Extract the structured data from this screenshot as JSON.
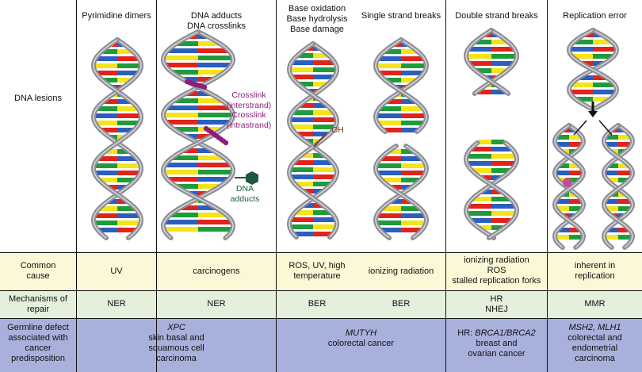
{
  "columns": [
    {
      "title": "Pyrimidine dimers"
    },
    {
      "title_line1": "DNA adducts",
      "title_line2": "DNA crosslinks"
    },
    {
      "title_line1": "Base oxidation",
      "title_line2": "Base hydrolysis",
      "title_line3": "Base damage"
    },
    {
      "title": "Single strand breaks"
    },
    {
      "title": "Double strand breaks"
    },
    {
      "title": "Replication error"
    }
  ],
  "rows": {
    "lesions": "DNA lesions",
    "cause_line1": "Common",
    "cause_line2": "cause",
    "mech_line1": "Mechanisms of",
    "mech_line2": "repair",
    "germ_line1": "Germline defect",
    "germ_line2": "associated with",
    "germ_line3": "cancer",
    "germ_line4": "predisposition"
  },
  "annotations": {
    "crosslink_inter_1": "Crosslink",
    "crosslink_inter_2": "(interstrand)",
    "crosslink_intra_1": "Crosslink",
    "crosslink_intra_2": "(intrastrand)",
    "adducts_1": "DNA",
    "adducts_2": "adducts",
    "oh": "OH"
  },
  "causes": {
    "c1": "UV",
    "c2": "carcinogens",
    "c3_line1": "ROS, UV, high",
    "c3_line2": "temperature",
    "c4": "ionizing radiation",
    "c5_line1": "ionizing radiation",
    "c5_line2": "ROS",
    "c5_line3": "stalled replication forks",
    "c6_line1": "inherent in",
    "c6_line2": "replication"
  },
  "mechanisms": {
    "m1": "NER",
    "m2": "NER",
    "m3": "BER",
    "m4": "BER",
    "m5_line1": "HR",
    "m5_line2": "NHEJ",
    "m6": "MMR"
  },
  "germline": {
    "g12_gene": "XPC",
    "g12_line2": "skin basal and",
    "g12_line3": "squamous cell",
    "g12_line4": "carcinoma",
    "g34_gene": "MUTYH",
    "g34_line2": "colorectal cancer",
    "g5_prefix": "HR: ",
    "g5_gene": "BRCA1/BRCA2",
    "g5_line2": "breast and",
    "g5_line3": "ovarian cancer",
    "g6_gene": "MSH2, MLH1",
    "g6_line2": "colorectal and",
    "g6_line3": "endometrial",
    "g6_line4": "carcinoma"
  },
  "colors": {
    "strand": "#8e8e96",
    "base_red": "#e2231a",
    "base_green": "#1e9b3a",
    "base_blue": "#2a5fbf",
    "base_yellow": "#f5e31c",
    "crosslink": "#8c1f7a",
    "adduct": "#1d5a3a",
    "oh": "#7a3a10",
    "mismatch": "#c44a9a"
  }
}
